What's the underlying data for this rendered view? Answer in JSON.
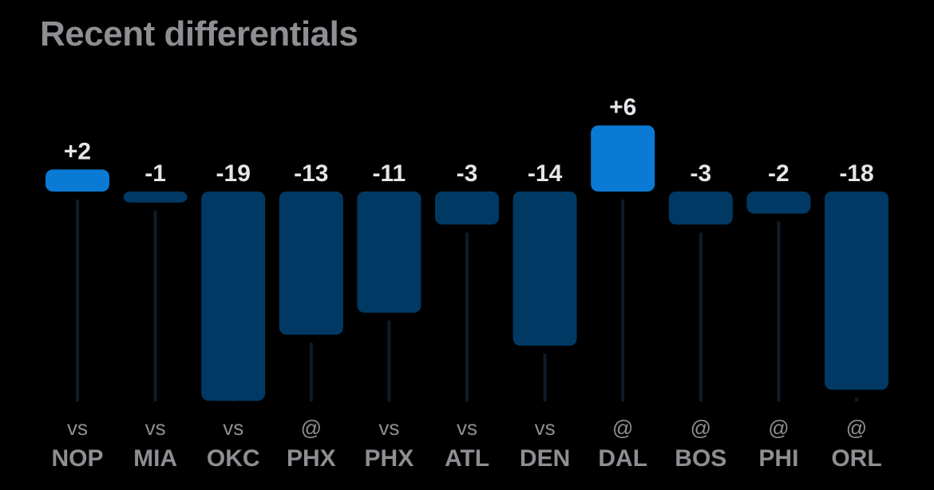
{
  "header": {
    "title": "Recent differentials"
  },
  "colors": {
    "positive_bar": "#0a7ad4",
    "negative_bar": "#003a64",
    "track": "#0f1c28",
    "value_text": "#e5e5ea",
    "axis_text": "#8e8e93"
  },
  "chart_data": {
    "type": "bar",
    "title": "Recent differentials",
    "xlabel": "",
    "ylabel": "",
    "ylim": [
      -19,
      6
    ],
    "grid": false,
    "legend": "none",
    "categories": [
      "vs NOP",
      "vs MIA",
      "vs OKC",
      "@ PHX",
      "vs PHX",
      "vs ATL",
      "vs DEN",
      "@ DAL",
      "@ BOS",
      "@ PHI",
      "@ ORL"
    ],
    "games": [
      {
        "location": "vs",
        "opponent": "NOP",
        "value": 2,
        "label": "+2"
      },
      {
        "location": "vs",
        "opponent": "MIA",
        "value": -1,
        "label": "-1"
      },
      {
        "location": "vs",
        "opponent": "OKC",
        "value": -19,
        "label": "-19"
      },
      {
        "location": "@",
        "opponent": "PHX",
        "value": -13,
        "label": "-13"
      },
      {
        "location": "vs",
        "opponent": "PHX",
        "value": -11,
        "label": "-11"
      },
      {
        "location": "vs",
        "opponent": "ATL",
        "value": -3,
        "label": "-3"
      },
      {
        "location": "vs",
        "opponent": "DEN",
        "value": -14,
        "label": "-14"
      },
      {
        "location": "@",
        "opponent": "DAL",
        "value": 6,
        "label": "+6"
      },
      {
        "location": "@",
        "opponent": "BOS",
        "value": -3,
        "label": "-3"
      },
      {
        "location": "@",
        "opponent": "PHI",
        "value": -2,
        "label": "-2"
      },
      {
        "location": "@",
        "opponent": "ORL",
        "value": -18,
        "label": "-18"
      }
    ]
  }
}
